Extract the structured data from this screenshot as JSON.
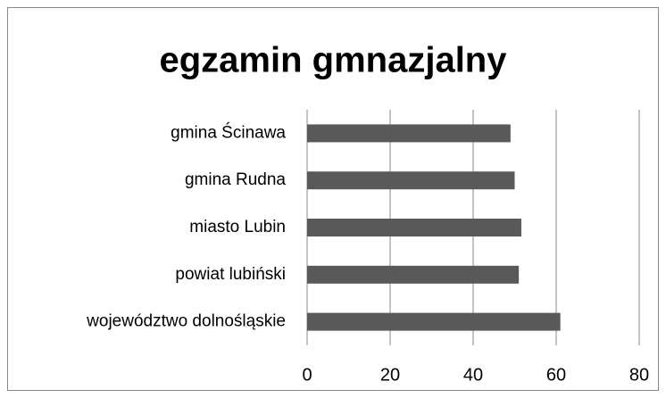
{
  "chart_data": {
    "type": "bar",
    "orientation": "horizontal",
    "title": "egzamin gmnazjalny",
    "categories": [
      "gmina Ścinawa",
      "gmina Rudna",
      "miasto Lubin",
      "powiat lubiński",
      "województwo dolnośląskie"
    ],
    "values": [
      49,
      50,
      51.6,
      51,
      61
    ],
    "color": "#595959",
    "xlim": [
      0,
      80
    ],
    "xticks": [
      0,
      20,
      40,
      60,
      80
    ],
    "grid": true
  }
}
